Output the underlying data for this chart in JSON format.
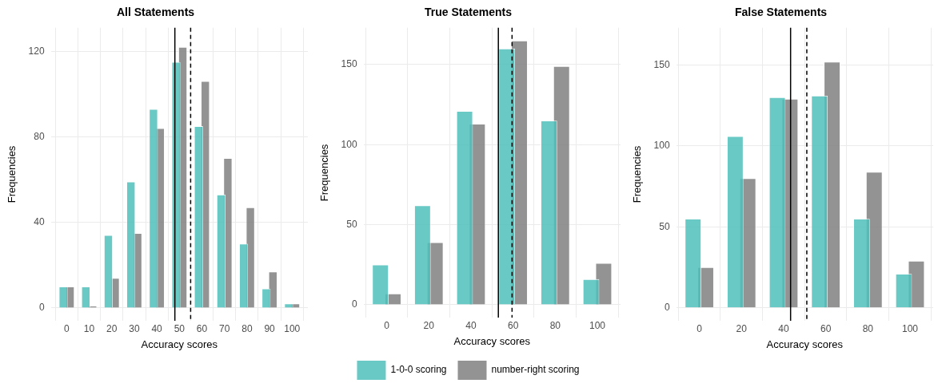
{
  "chart_data": [
    {
      "type": "bar",
      "title": "All Statements",
      "xlabel": "Accuracy scores",
      "ylabel": "Frequencies",
      "x": [
        0,
        10,
        20,
        30,
        40,
        50,
        60,
        70,
        80,
        90,
        100
      ],
      "series": [
        {
          "color": "#4fbfbb",
          "values": [
            10,
            10,
            34,
            59,
            93,
            115,
            85,
            53,
            30,
            9,
            2
          ]
        },
        {
          "color": "#808080",
          "values": [
            10,
            1,
            14,
            35,
            84,
            122,
            106,
            70,
            47,
            17,
            2
          ]
        }
      ],
      "xlim": [
        -7,
        107
      ],
      "ylim": [
        -6,
        131
      ],
      "xticks": [
        0,
        10,
        20,
        30,
        40,
        50,
        60,
        70,
        80,
        90,
        100
      ],
      "yticks": [
        0,
        40,
        80,
        120
      ],
      "ref_lines": [
        {
          "axis": "x",
          "value": 48,
          "line_style": "solid",
          "color": "#000000"
        },
        {
          "axis": "x",
          "value": 55,
          "line_style": "dashed",
          "color": "#000000"
        }
      ],
      "grid": true
    },
    {
      "type": "bar",
      "title": "True Statements",
      "xlabel": "Accuracy scores",
      "ylabel": "Frequencies",
      "x": [
        0,
        20,
        40,
        60,
        80,
        100
      ],
      "series": [
        {
          "name": "1-0-0 scoring",
          "color": "#4fbfbb",
          "values": [
            25,
            62,
            121,
            160,
            115,
            16
          ]
        },
        {
          "name": "number-right scoring",
          "color": "#808080",
          "values": [
            7,
            39,
            113,
            165,
            149,
            26
          ]
        }
      ],
      "xlim": [
        -11,
        111
      ],
      "ylim": [
        -8,
        173
      ],
      "xticks": [
        0,
        20,
        40,
        60,
        80,
        100
      ],
      "yticks": [
        0,
        50,
        100,
        150
      ],
      "ref_lines": [
        {
          "axis": "x",
          "value": 53,
          "line_style": "solid",
          "color": "#000000"
        },
        {
          "axis": "x",
          "value": 59.5,
          "line_style": "dashed",
          "color": "#000000"
        }
      ],
      "grid": true,
      "legend": "bottom"
    },
    {
      "type": "bar",
      "title": "False Statements",
      "xlabel": "Accuracy scores",
      "ylabel": "Frequencies",
      "x": [
        0,
        20,
        40,
        60,
        80,
        100
      ],
      "series": [
        {
          "color": "#4fbfbb",
          "values": [
            55,
            106,
            130,
            131,
            55,
            21
          ]
        },
        {
          "color": "#808080",
          "values": [
            25,
            80,
            129,
            152,
            84,
            29
          ]
        }
      ],
      "xlim": [
        -11,
        111
      ],
      "ylim": [
        -8,
        173
      ],
      "xticks": [
        0,
        20,
        40,
        60,
        80,
        100
      ],
      "yticks": [
        0,
        50,
        100,
        150
      ],
      "ref_lines": [
        {
          "axis": "x",
          "value": 43.3,
          "line_style": "solid",
          "color": "#000000"
        },
        {
          "axis": "x",
          "value": 51,
          "line_style": "dashed",
          "color": "#000000"
        }
      ],
      "grid": true
    }
  ]
}
